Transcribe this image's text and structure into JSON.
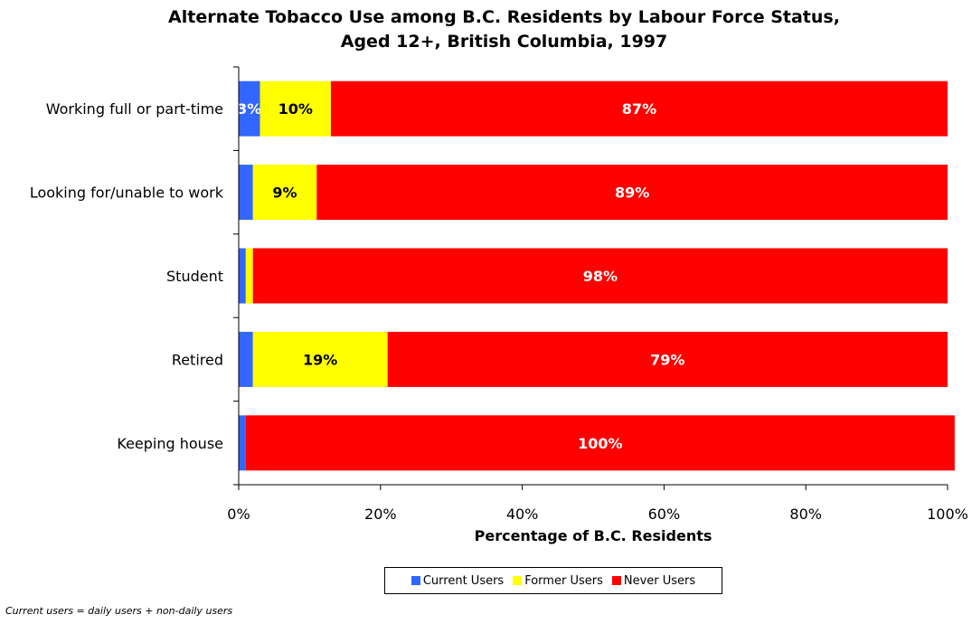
{
  "chart_data": {
    "type": "bar",
    "orientation": "horizontal",
    "stacked": true,
    "title": "Alternate Tobacco Use among B.C. Residents by Labour Force Status,",
    "subtitle": "Aged 12+, British Columbia, 1997",
    "xlabel": "Percentage of B.C. Residents",
    "ylabel": "",
    "xlim": [
      0,
      100
    ],
    "x_ticks": [
      "0%",
      "20%",
      "40%",
      "60%",
      "80%",
      "100%"
    ],
    "categories": [
      "Working full or part-time",
      "Looking for/unable to work",
      "Student",
      "Retired",
      "Keeping house"
    ],
    "series": [
      {
        "name": "Current Users",
        "color": "#3366ff",
        "values": [
          3,
          2,
          1,
          2,
          1
        ],
        "labels": [
          "3%",
          "",
          "",
          "",
          ""
        ]
      },
      {
        "name": "Former Users",
        "color": "#ffff00",
        "values": [
          10,
          9,
          1,
          19,
          0
        ],
        "labels": [
          "10%",
          "9%",
          "",
          "19%",
          ""
        ]
      },
      {
        "name": "Never Users",
        "color": "#ff0000",
        "values": [
          87,
          89,
          98,
          79,
          100
        ],
        "labels": [
          "87%",
          "89%",
          "98%",
          "79%",
          "100%"
        ]
      }
    ],
    "label_colors": [
      "#ffffff",
      "#000000",
      "#ffffff"
    ],
    "legend_position": "bottom",
    "grid": false
  },
  "footnote": "Current users = daily users + non-daily users"
}
